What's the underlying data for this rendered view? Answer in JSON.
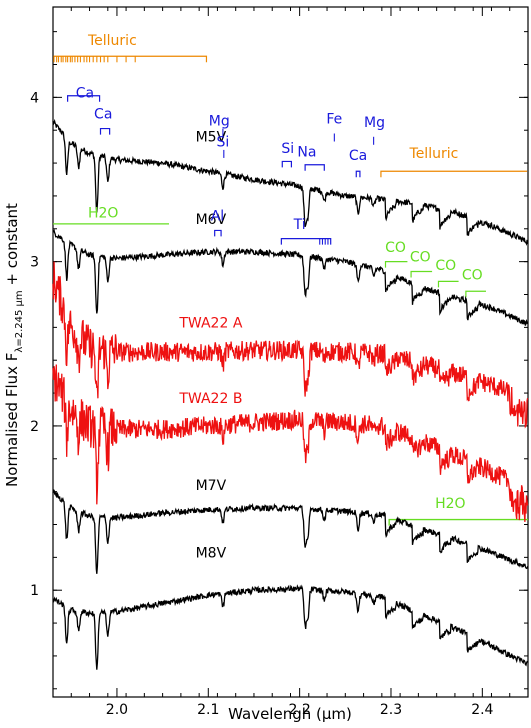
{
  "colors": {
    "black": "#000000",
    "red": "#ee1111",
    "blue": "#1a1adc",
    "orange": "#ee8800",
    "green": "#66dd22"
  },
  "chart_data": {
    "type": "line",
    "xlabel": "Wavelengh (μm)",
    "ylabel_main": "Normalised Flux F",
    "ylabel_sub": "λ=2.245 μm",
    "ylabel_tail": " + constant",
    "xlim": [
      1.93,
      2.45
    ],
    "ylim": [
      0.35,
      4.55
    ],
    "x_ticks": [
      2.0,
      2.1,
      2.2,
      2.3,
      2.4
    ],
    "x_tick_labels": [
      "2.0",
      "2.1",
      "2.2",
      "2.3",
      "2.4"
    ],
    "y_ticks": [
      1,
      2,
      3,
      4
    ],
    "y_tick_labels": [
      "1",
      "2",
      "3",
      "4"
    ],
    "series": [
      {
        "name": "M5V",
        "color": "black",
        "x": [
          1.93,
          1.95,
          1.97,
          2.0,
          2.05,
          2.1,
          2.15,
          2.2,
          2.25,
          2.29,
          2.33,
          2.37,
          2.41,
          2.45
        ],
        "y": [
          3.85,
          3.72,
          3.66,
          3.62,
          3.6,
          3.55,
          3.5,
          3.46,
          3.4,
          3.38,
          3.35,
          3.3,
          3.22,
          3.12
        ]
      },
      {
        "name": "M6V",
        "color": "black",
        "x": [
          1.93,
          1.95,
          1.97,
          2.0,
          2.05,
          2.1,
          2.15,
          2.2,
          2.25,
          2.29,
          2.33,
          2.37,
          2.41,
          2.45
        ],
        "y": [
          3.18,
          3.1,
          3.04,
          3.02,
          3.04,
          3.06,
          3.06,
          3.04,
          3.0,
          2.95,
          2.85,
          2.78,
          2.72,
          2.62
        ]
      },
      {
        "name": "TWA22 A",
        "color": "red",
        "x": [
          1.93,
          1.95,
          1.97,
          2.0,
          2.05,
          2.1,
          2.15,
          2.2,
          2.25,
          2.29,
          2.33,
          2.37,
          2.41,
          2.45
        ],
        "y": [
          2.9,
          2.6,
          2.48,
          2.45,
          2.45,
          2.45,
          2.46,
          2.46,
          2.45,
          2.44,
          2.38,
          2.32,
          2.25,
          2.15
        ]
      },
      {
        "name": "TWA22 B",
        "color": "red",
        "x": [
          1.93,
          1.95,
          1.97,
          2.0,
          2.05,
          2.1,
          2.15,
          2.2,
          2.25,
          2.29,
          2.33,
          2.37,
          2.41,
          2.45
        ],
        "y": [
          2.3,
          2.1,
          2.0,
          1.98,
          1.98,
          2.0,
          2.02,
          2.04,
          2.02,
          2.0,
          1.92,
          1.82,
          1.72,
          1.6
        ]
      },
      {
        "name": "M7V",
        "color": "black",
        "x": [
          1.93,
          1.95,
          1.97,
          2.0,
          2.05,
          2.1,
          2.15,
          2.2,
          2.25,
          2.29,
          2.33,
          2.37,
          2.41,
          2.45
        ],
        "y": [
          1.6,
          1.5,
          1.45,
          1.44,
          1.47,
          1.49,
          1.5,
          1.5,
          1.48,
          1.46,
          1.38,
          1.31,
          1.23,
          1.14
        ]
      },
      {
        "name": "M8V",
        "color": "black",
        "x": [
          1.93,
          1.95,
          1.97,
          2.0,
          2.05,
          2.1,
          2.15,
          2.2,
          2.25,
          2.29,
          2.33,
          2.37,
          2.41,
          2.45
        ],
        "y": [
          0.95,
          0.88,
          0.86,
          0.87,
          0.92,
          0.97,
          1.0,
          1.01,
          0.99,
          0.96,
          0.86,
          0.77,
          0.66,
          0.55
        ]
      }
    ],
    "spectrum_labels": [
      {
        "text": "M5V",
        "x": 2.07,
        "y": 3.73,
        "color": "black"
      },
      {
        "text": "M6V",
        "x": 2.07,
        "y": 3.23,
        "color": "black"
      },
      {
        "text": "TWA22  A",
        "x": 2.07,
        "y": 2.6,
        "color": "red"
      },
      {
        "text": "TWA22  B",
        "x": 2.07,
        "y": 2.14,
        "color": "red"
      },
      {
        "text": "M7V",
        "x": 2.07,
        "y": 1.61,
        "color": "black"
      },
      {
        "text": "M8V",
        "x": 2.07,
        "y": 1.2,
        "color": "black"
      }
    ],
    "line_ids": [
      {
        "text": "Telluric",
        "x": 1.995,
        "y": 4.32,
        "color": "orange"
      },
      {
        "text": "Ca",
        "x": 1.965,
        "y": 4.0,
        "color": "blue"
      },
      {
        "text": "Ca",
        "x": 1.985,
        "y": 3.87,
        "color": "blue"
      },
      {
        "text": "Mg",
        "x": 2.112,
        "y": 3.83,
        "color": "blue"
      },
      {
        "text": "Si",
        "x": 2.116,
        "y": 3.7,
        "color": "blue"
      },
      {
        "text": "Fe",
        "x": 2.238,
        "y": 3.84,
        "color": "blue"
      },
      {
        "text": "Mg",
        "x": 2.282,
        "y": 3.82,
        "color": "blue"
      },
      {
        "text": "Si",
        "x": 2.187,
        "y": 3.66,
        "color": "blue"
      },
      {
        "text": "Na",
        "x": 2.208,
        "y": 3.64,
        "color": "blue"
      },
      {
        "text": "Ca",
        "x": 2.264,
        "y": 3.62,
        "color": "blue"
      },
      {
        "text": "Telluric",
        "x": 2.347,
        "y": 3.63,
        "color": "orange"
      },
      {
        "text": "H2O",
        "x": 1.985,
        "y": 3.27,
        "color": "green"
      },
      {
        "text": "Al",
        "x": 2.11,
        "y": 3.25,
        "color": "blue"
      },
      {
        "text": "Ti",
        "x": 2.2,
        "y": 3.2,
        "color": "blue"
      },
      {
        "text": "CO",
        "x": 2.305,
        "y": 3.06,
        "color": "green"
      },
      {
        "text": "CO",
        "x": 2.332,
        "y": 3.0,
        "color": "green"
      },
      {
        "text": "CO",
        "x": 2.36,
        "y": 2.95,
        "color": "green"
      },
      {
        "text": "CO",
        "x": 2.389,
        "y": 2.89,
        "color": "green"
      },
      {
        "text": "H2O",
        "x": 2.365,
        "y": 1.5,
        "color": "green"
      }
    ]
  }
}
